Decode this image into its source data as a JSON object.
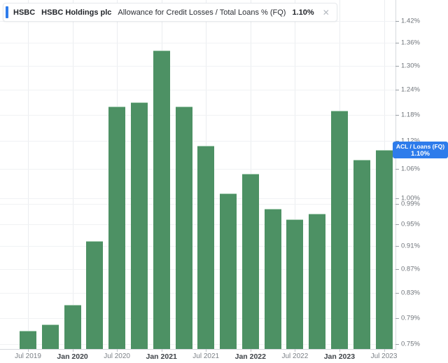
{
  "header": {
    "ticker": "HSBC",
    "company": "HSBC Holdings plc",
    "metric": "Allowance for Credit Losses / Total Loans % (FQ)",
    "value": "1.10%",
    "close_glyph": "✕",
    "accent_color": "#2e7ceb"
  },
  "badge": {
    "line1": "ACL / Loans (FQ)",
    "line2": "1.10%",
    "value": 1.1,
    "color": "#2e7ceb"
  },
  "chart_data": {
    "type": "bar",
    "title": "HSBC Holdings plc — Allowance for Credit Losses / Total Loans % (FQ)",
    "series_name": "ACL / Loans (FQ)",
    "unit": "%",
    "x": [
      "Jun 2019",
      "Sep 2019",
      "Dec 2019",
      "Mar 2020",
      "Jun 2020",
      "Sep 2020",
      "Dec 2020",
      "Mar 2021",
      "Jun 2021",
      "Sep 2021",
      "Dec 2021",
      "Mar 2022",
      "Jun 2022",
      "Sep 2022",
      "Dec 2022",
      "Mar 2023",
      "Jun 2023"
    ],
    "values": [
      0.77,
      0.78,
      0.81,
      0.92,
      1.2,
      1.21,
      1.34,
      1.2,
      1.11,
      1.01,
      1.05,
      0.98,
      0.96,
      0.97,
      1.19,
      1.08,
      1.1
    ],
    "last_value": 1.1,
    "y_scale": "log",
    "y_domain": [
      0.75,
      1.42
    ],
    "y_tick_labels": [
      "1.42%",
      "1.36%",
      "1.30%",
      "1.24%",
      "1.18%",
      "1.12%",
      "1.06%",
      "1.00%",
      "0.99%",
      "0.95%",
      "0.91%",
      "0.87%",
      "0.83%",
      "0.79%",
      "0.75%"
    ],
    "x_axis_labels": [
      {
        "text": "Jul 2019",
        "strong": false
      },
      {
        "text": "Jan 2020",
        "strong": true
      },
      {
        "text": "Jul 2020",
        "strong": false
      },
      {
        "text": "Jan 2021",
        "strong": true
      },
      {
        "text": "Jul 2021",
        "strong": false
      },
      {
        "text": "Jan 2022",
        "strong": true
      },
      {
        "text": "Jul 2022",
        "strong": false
      },
      {
        "text": "Jan 2023",
        "strong": true
      },
      {
        "text": "Jul 2023",
        "strong": false
      }
    ],
    "bar_color": "#4d9164",
    "grid": true,
    "legend_position": "top-left-overlay"
  }
}
